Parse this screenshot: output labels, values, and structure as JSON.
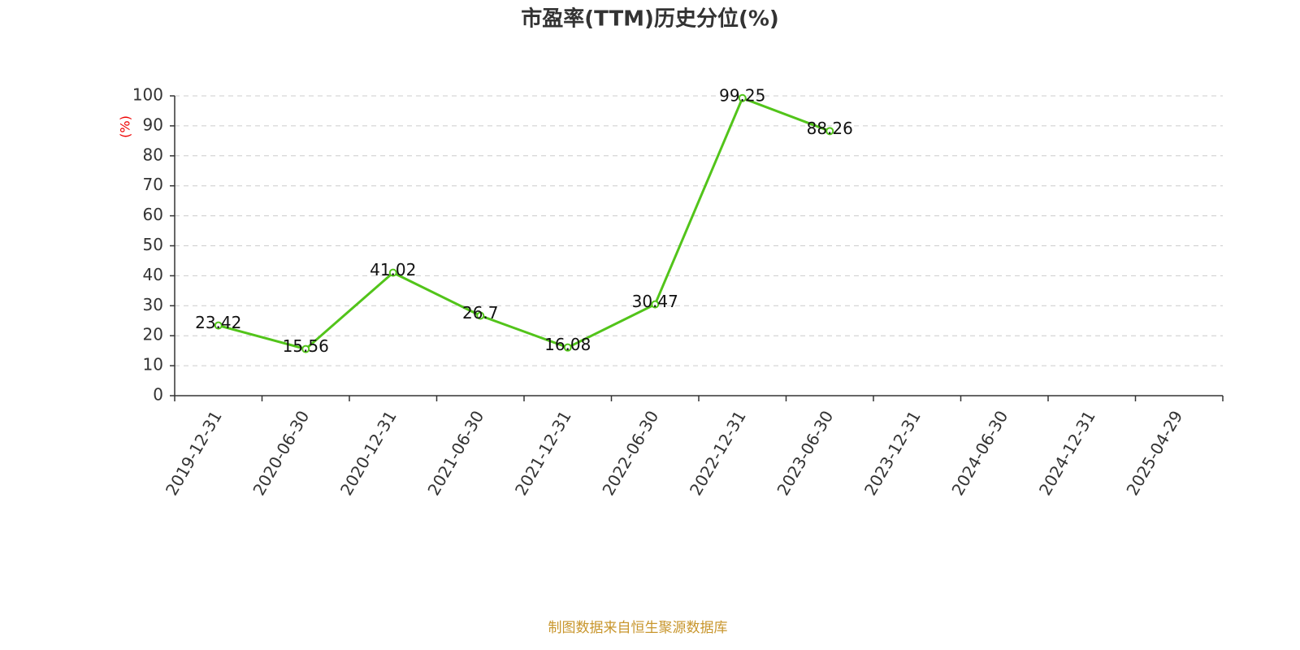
{
  "chart_data": {
    "type": "line",
    "title": "市盈率(TTM)历史分位(%)",
    "y_label": "(%)",
    "footer": "制图数据来自恒生聚源数据库",
    "categories": [
      "2019-12-31",
      "2020-06-30",
      "2020-12-31",
      "2021-06-30",
      "2021-12-31",
      "2022-06-30",
      "2022-12-31",
      "2023-06-30",
      "2023-12-31",
      "2024-06-30",
      "2024-12-31",
      "2025-04-29"
    ],
    "values": [
      23.42,
      15.56,
      41.02,
      26.7,
      16.08,
      30.47,
      99.25,
      88.26,
      null,
      null,
      null,
      null
    ],
    "color": "#52c41a",
    "ylim": [
      0,
      100
    ],
    "yticks": [
      0,
      10,
      20,
      30,
      40,
      50,
      60,
      70,
      80,
      90,
      100
    ],
    "grid": true
  }
}
